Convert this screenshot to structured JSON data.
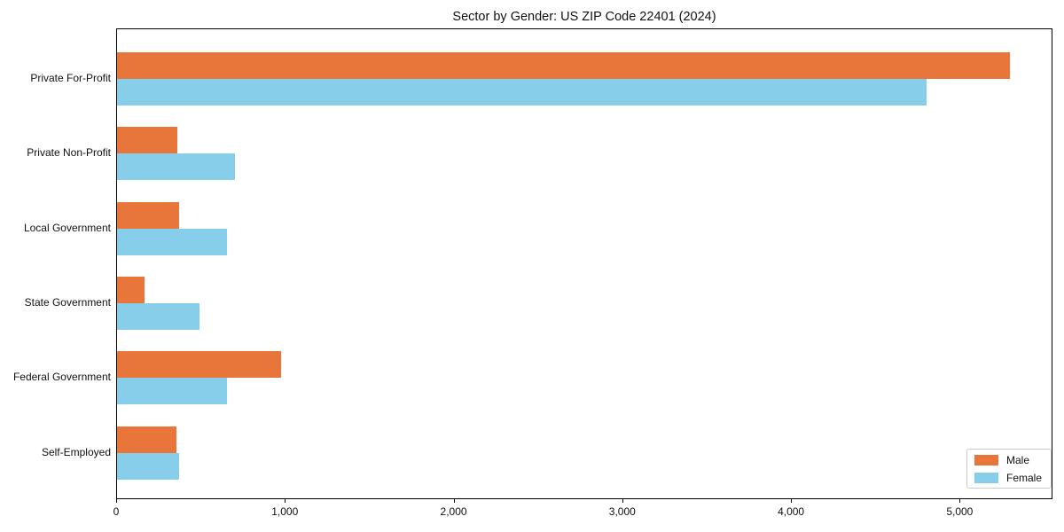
{
  "chart_data": {
    "type": "bar",
    "orientation": "horizontal",
    "title": "Sector by Gender: US ZIP Code 22401 (2024)",
    "categories": [
      "Private For-Profit",
      "Private Non-Profit",
      "Local Government",
      "State Government",
      "Federal Government",
      "Self-Employed"
    ],
    "series": [
      {
        "name": "Male",
        "color": "#E8763A",
        "values": [
          5290,
          360,
          370,
          165,
          970,
          350
        ]
      },
      {
        "name": "Female",
        "color": "#87CEEB",
        "values": [
          4800,
          700,
          650,
          490,
          650,
          370
        ]
      }
    ],
    "xlabel": "",
    "ylabel": "",
    "xlim": [
      0,
      5550
    ],
    "xticks": [
      0,
      1000,
      2000,
      3000,
      4000,
      5000
    ],
    "xtick_labels": [
      "0",
      "1,000",
      "2,000",
      "3,000",
      "4,000",
      "5,000"
    ],
    "grid": false,
    "legend_position": "lower right",
    "frame": true,
    "background_color": "#ffffff",
    "spine_color": "#000000"
  }
}
